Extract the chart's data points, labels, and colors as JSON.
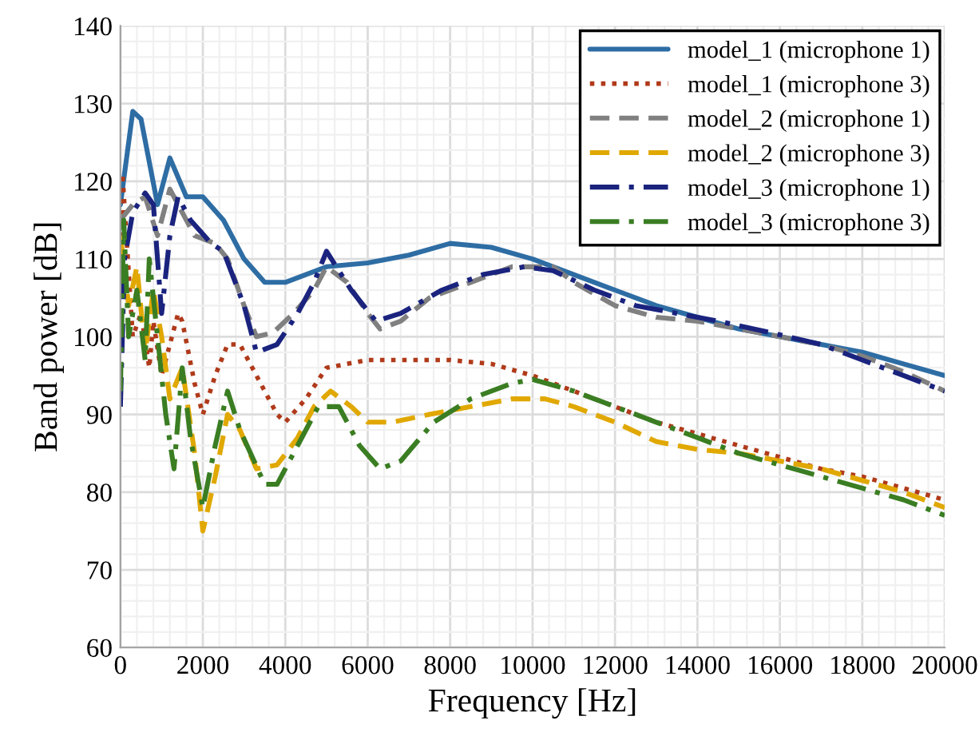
{
  "chart_data": {
    "type": "line",
    "xlabel": "Frequency [Hz]",
    "ylabel": "Band power [dB]",
    "xlim": [
      0,
      20000
    ],
    "xticks": [
      0,
      2000,
      4000,
      6000,
      8000,
      10000,
      12000,
      14000,
      16000,
      18000,
      20000
    ],
    "ylim": [
      60,
      140
    ],
    "yticks": [
      60,
      70,
      80,
      90,
      100,
      110,
      120,
      130,
      140
    ],
    "grid": true,
    "legend": "top right",
    "marker": "none",
    "series": [
      {
        "name": "model_1 (microphone 1)",
        "color": "#2e6da4",
        "line_style": "solid",
        "x": [
          0,
          300,
          500,
          900,
          1200,
          1600,
          2000,
          2500,
          3000,
          3500,
          4000,
          4500,
          5000,
          6000,
          7000,
          8000,
          9000,
          10000,
          11000,
          12000,
          13000,
          14000,
          15000,
          16000,
          17000,
          18000,
          19000,
          20000
        ],
        "values": [
          117,
          129,
          128,
          117,
          123,
          118,
          118,
          115,
          110,
          107,
          107,
          108,
          109,
          109.5,
          110.5,
          112,
          111.5,
          110,
          108,
          106,
          104,
          102.5,
          101,
          100,
          99,
          98,
          96.5,
          95
        ]
      },
      {
        "name": "model_1 (microphone 3)",
        "color": "#b03a1a",
        "line_style": "dotted",
        "x": [
          0,
          50,
          300,
          500,
          700,
          800,
          1000,
          1400,
          1500,
          1800,
          2000,
          2300,
          2600,
          2900,
          3300,
          3800,
          4000,
          4500,
          5000,
          6000,
          8000,
          9000,
          10000,
          11000,
          12000,
          13000,
          14000,
          15000,
          16000,
          17000,
          18000,
          19000,
          20000
        ],
        "values": [
          110,
          121,
          100,
          103,
          96,
          102,
          95,
          103,
          102,
          94,
          90,
          95,
          99,
          99,
          95,
          90,
          89,
          92,
          96,
          97,
          97,
          96.5,
          95,
          93,
          91,
          89,
          87.5,
          86,
          84.5,
          83,
          82,
          80.5,
          79
        ]
      },
      {
        "name": "model_2 (microphone 1)",
        "color": "#808080",
        "line_style": "dashed",
        "x": [
          0,
          300,
          600,
          900,
          1200,
          1400,
          1800,
          2300,
          2600,
          3000,
          3300,
          3700,
          4200,
          4700,
          5000,
          5500,
          6000,
          6300,
          6800,
          7500,
          8500,
          9500,
          10500,
          11000,
          12000,
          13000,
          14000,
          15000,
          16000,
          17000,
          18000,
          19000,
          20000
        ],
        "values": [
          115,
          117,
          118,
          113,
          119,
          117,
          113,
          112,
          110,
          104,
          100,
          100.5,
          103,
          106,
          109,
          107,
          103,
          101,
          102,
          105,
          107,
          109,
          109,
          107,
          104,
          102.5,
          102,
          101,
          100,
          99,
          97.5,
          95.5,
          93
        ]
      },
      {
        "name": "model_2 (microphone 3)",
        "color": "#e0a800",
        "line_style": "dashed",
        "x": [
          0,
          200,
          400,
          600,
          800,
          1000,
          1200,
          1500,
          1800,
          2000,
          2300,
          2600,
          2900,
          3300,
          3800,
          4300,
          4700,
          5100,
          5600,
          6000,
          6600,
          7500,
          8500,
          9500,
          10300,
          11000,
          12000,
          13000,
          14000,
          15000,
          16000,
          17000,
          18000,
          19000,
          20000
        ],
        "values": [
          113,
          104,
          109,
          98,
          106,
          100,
          92,
          96,
          85,
          75,
          82,
          90,
          88,
          83,
          83.5,
          87,
          91,
          93,
          91,
          89,
          89,
          90,
          91,
          92,
          92,
          91,
          89,
          86.5,
          85.5,
          85,
          84,
          83,
          81.5,
          80,
          78
        ]
      },
      {
        "name": "model_3 (microphone 1)",
        "color": "#1a237e",
        "line_style": "dashdot",
        "x": [
          0,
          100,
          300,
          600,
          800,
          1000,
          1200,
          1400,
          1700,
          2200,
          2500,
          3000,
          3300,
          3800,
          4300,
          4700,
          5000,
          5600,
          6200,
          6800,
          7800,
          8800,
          9800,
          10500,
          11500,
          12500,
          13500,
          14500,
          15800,
          17000,
          18000,
          19000,
          20000
        ],
        "values": [
          91,
          110,
          116,
          118.5,
          117,
          103,
          113,
          118,
          115,
          112,
          111,
          104,
          98,
          99,
          103,
          107,
          111,
          106,
          102,
          103,
          106,
          108,
          109,
          108.5,
          106,
          104,
          103,
          102,
          100.5,
          99,
          97,
          95,
          93
        ]
      },
      {
        "name": "model_3 (microphone 3)",
        "color": "#3a7d22",
        "line_style": "dashdot",
        "x": [
          0,
          80,
          200,
          400,
          600,
          700,
          900,
          1100,
          1300,
          1500,
          1700,
          2000,
          2300,
          2600,
          2900,
          3500,
          3800,
          4300,
          4800,
          5300,
          5800,
          6300,
          6800,
          7600,
          8500,
          9500,
          10000,
          11000,
          12000,
          13000,
          14000,
          15000,
          16000,
          17000,
          18000,
          19000,
          20000
        ],
        "values": [
          93,
          115,
          100,
          106,
          97,
          110,
          100,
          90,
          83,
          96,
          87,
          78,
          86,
          93,
          88,
          81,
          81,
          86,
          91,
          91,
          86,
          83,
          84,
          89,
          92,
          94,
          94.5,
          93,
          91,
          89,
          87,
          85,
          83.5,
          82,
          80.5,
          79,
          77
        ]
      }
    ]
  }
}
